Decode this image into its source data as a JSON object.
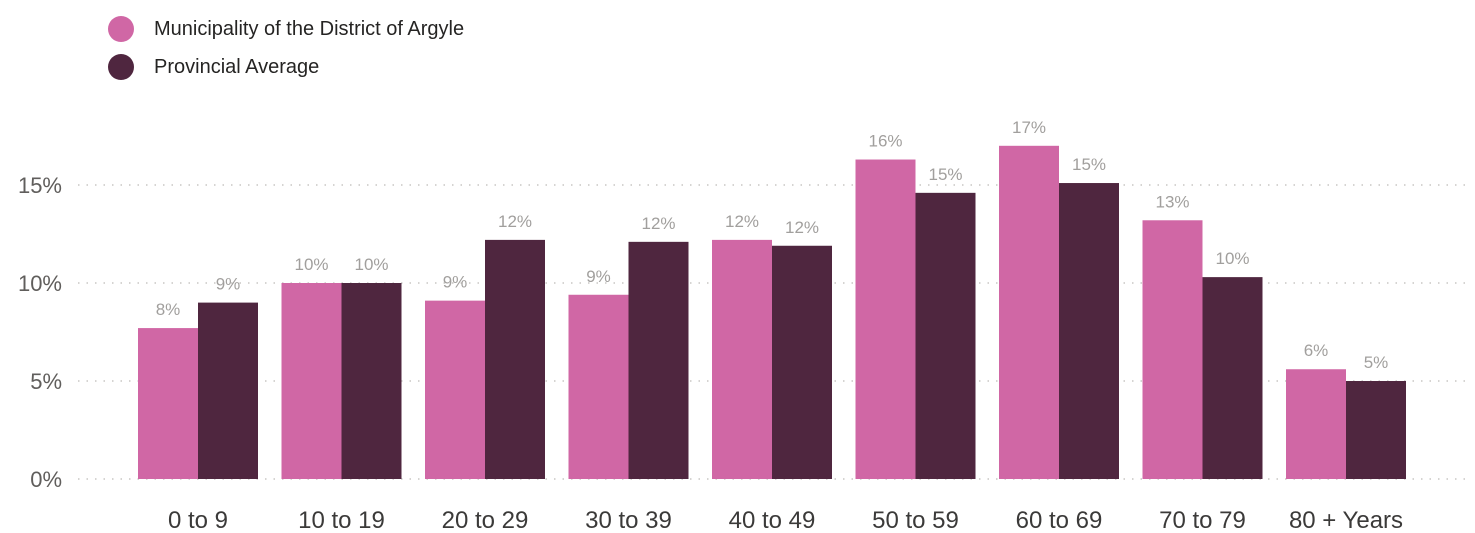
{
  "legend": {
    "items": [
      {
        "label": "Municipality of the District of Argyle",
        "color": "#d067a5"
      },
      {
        "label": "Provincial Average",
        "color": "#4f263f"
      }
    ]
  },
  "chart_data": {
    "type": "bar",
    "categories": [
      "0 to 9",
      "10 to 19",
      "20 to 29",
      "30 to 39",
      "40 to 49",
      "50 to 59",
      "60 to 69",
      "70 to 79",
      "80 + Years"
    ],
    "series": [
      {
        "name": "Municipality of the District of Argyle",
        "color": "#d067a5",
        "values": [
          7.7,
          10.0,
          9.1,
          9.4,
          12.2,
          16.3,
          17.0,
          13.2,
          5.6
        ],
        "labels": [
          "8%",
          "10%",
          "9%",
          "9%",
          "12%",
          "16%",
          "17%",
          "13%",
          "6%"
        ]
      },
      {
        "name": "Provincial Average",
        "color": "#4f263f",
        "values": [
          9.0,
          10.0,
          12.2,
          12.1,
          11.9,
          14.6,
          15.1,
          10.3,
          5.0
        ],
        "labels": [
          "9%",
          "10%",
          "12%",
          "12%",
          "12%",
          "15%",
          "15%",
          "10%",
          "5%"
        ]
      }
    ],
    "y_ticks": [
      "0%",
      "5%",
      "10%",
      "15%"
    ],
    "y_tick_values": [
      0,
      5,
      10,
      15
    ],
    "ylim": [
      0,
      20
    ],
    "gridlines": "dotted",
    "legend_position": "top-left"
  }
}
